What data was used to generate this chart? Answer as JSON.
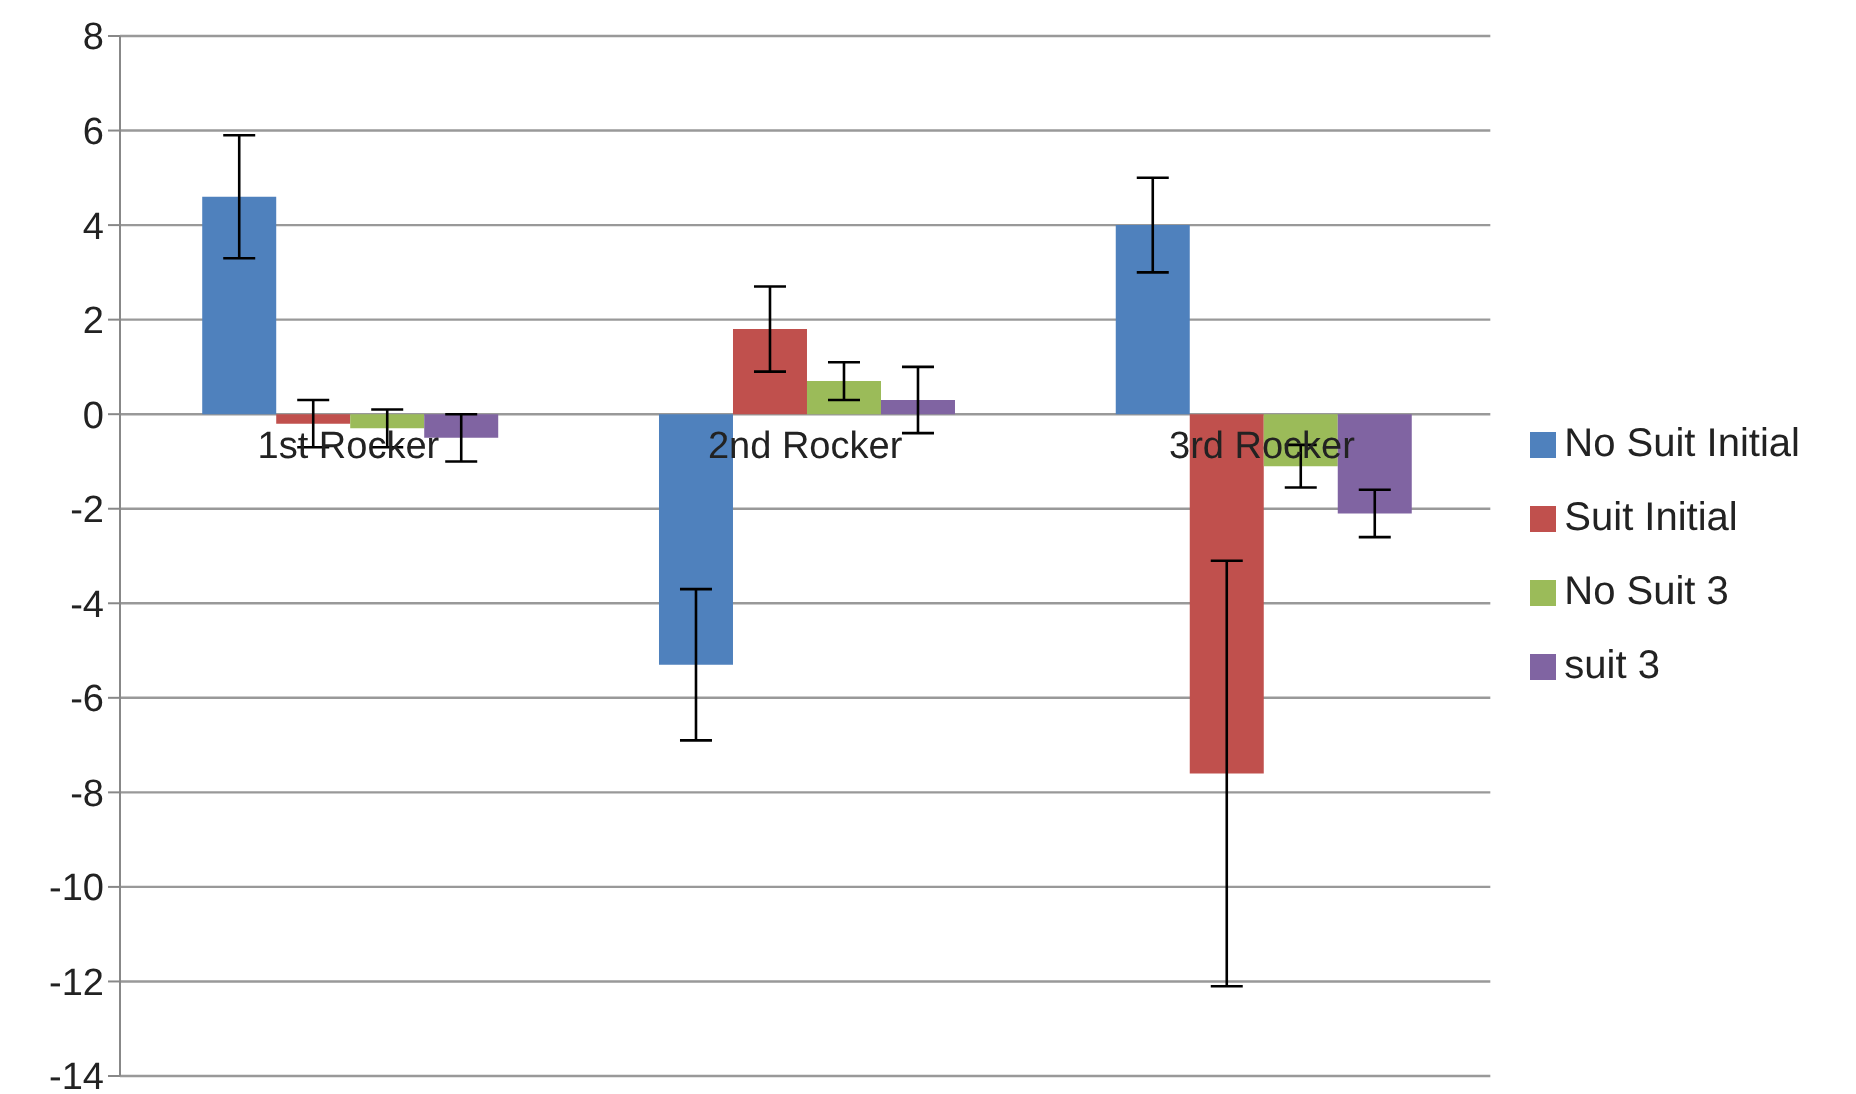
{
  "chart_data": {
    "type": "bar",
    "categories": [
      "1st Rocker",
      "2nd Rocker",
      "3rd Rocker"
    ],
    "series": [
      {
        "name": "No Suit Initial",
        "color": "#4f81bd",
        "values": [
          4.6,
          -5.3,
          4.0
        ],
        "errors": [
          1.3,
          1.6,
          1.0
        ]
      },
      {
        "name": "Suit Initial",
        "color": "#c0504d",
        "values": [
          -0.2,
          1.8,
          -7.6
        ],
        "errors": [
          0.5,
          0.9,
          4.5
        ]
      },
      {
        "name": "No Suit 3",
        "color": "#9bbb59",
        "values": [
          -0.3,
          0.7,
          -1.1
        ],
        "errors": [
          0.4,
          0.4,
          0.45
        ]
      },
      {
        "name": "suit 3",
        "color": "#8064a2",
        "values": [
          -0.5,
          0.3,
          -2.1
        ],
        "errors": [
          0.5,
          0.7,
          0.5
        ]
      }
    ],
    "ylim": [
      -14,
      8
    ],
    "yticks": [
      -14,
      -12,
      -10,
      -8,
      -6,
      -4,
      -2,
      0,
      2,
      4,
      6,
      8
    ],
    "grid": "y",
    "legend": "right"
  }
}
